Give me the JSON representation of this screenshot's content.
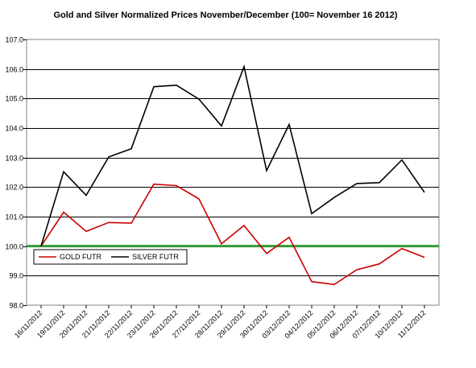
{
  "chart_data": {
    "type": "line",
    "title": "Gold and Silver Normalized Prices November/December (100= November 16 2012)",
    "xlabel": "",
    "ylabel": "",
    "ylim": [
      98.0,
      107.0
    ],
    "yticks": [
      "107.0",
      "106.0",
      "105.0",
      "104.0",
      "103.0",
      "102.0",
      "101.0",
      "100.0",
      "99.0",
      "98.0"
    ],
    "categories": [
      "16/11/2012",
      "19/11/2012",
      "20/11/2012",
      "21/11/2012",
      "22/11/2012",
      "23/11/2012",
      "26/11/2012",
      "27/11/2012",
      "28/11/2012",
      "29/11/2012",
      "30/11/2012",
      "03/12/2012",
      "04/12/2012",
      "05/12/2012",
      "06/12/2012",
      "07/12/2012",
      "10/12/2012",
      "11/12/2012"
    ],
    "grid": true,
    "legend_position": "bottom-left",
    "reference_line": {
      "value": 100.0,
      "color": "#339933"
    },
    "series": [
      {
        "name": "GOLD  FUTR",
        "color": "#cc0000",
        "values": [
          100.0,
          101.15,
          100.5,
          100.8,
          100.78,
          102.1,
          102.05,
          101.6,
          100.08,
          100.7,
          99.75,
          100.3,
          98.8,
          98.7,
          99.2,
          99.4,
          99.92,
          99.62
        ]
      },
      {
        "name": "SILVER  FUTR",
        "color": "#000000",
        "values": [
          100.0,
          102.52,
          101.72,
          103.02,
          103.3,
          105.4,
          105.45,
          104.98,
          104.07,
          106.08,
          102.56,
          104.12,
          101.1,
          101.65,
          102.12,
          102.15,
          102.92,
          101.82
        ]
      }
    ]
  }
}
